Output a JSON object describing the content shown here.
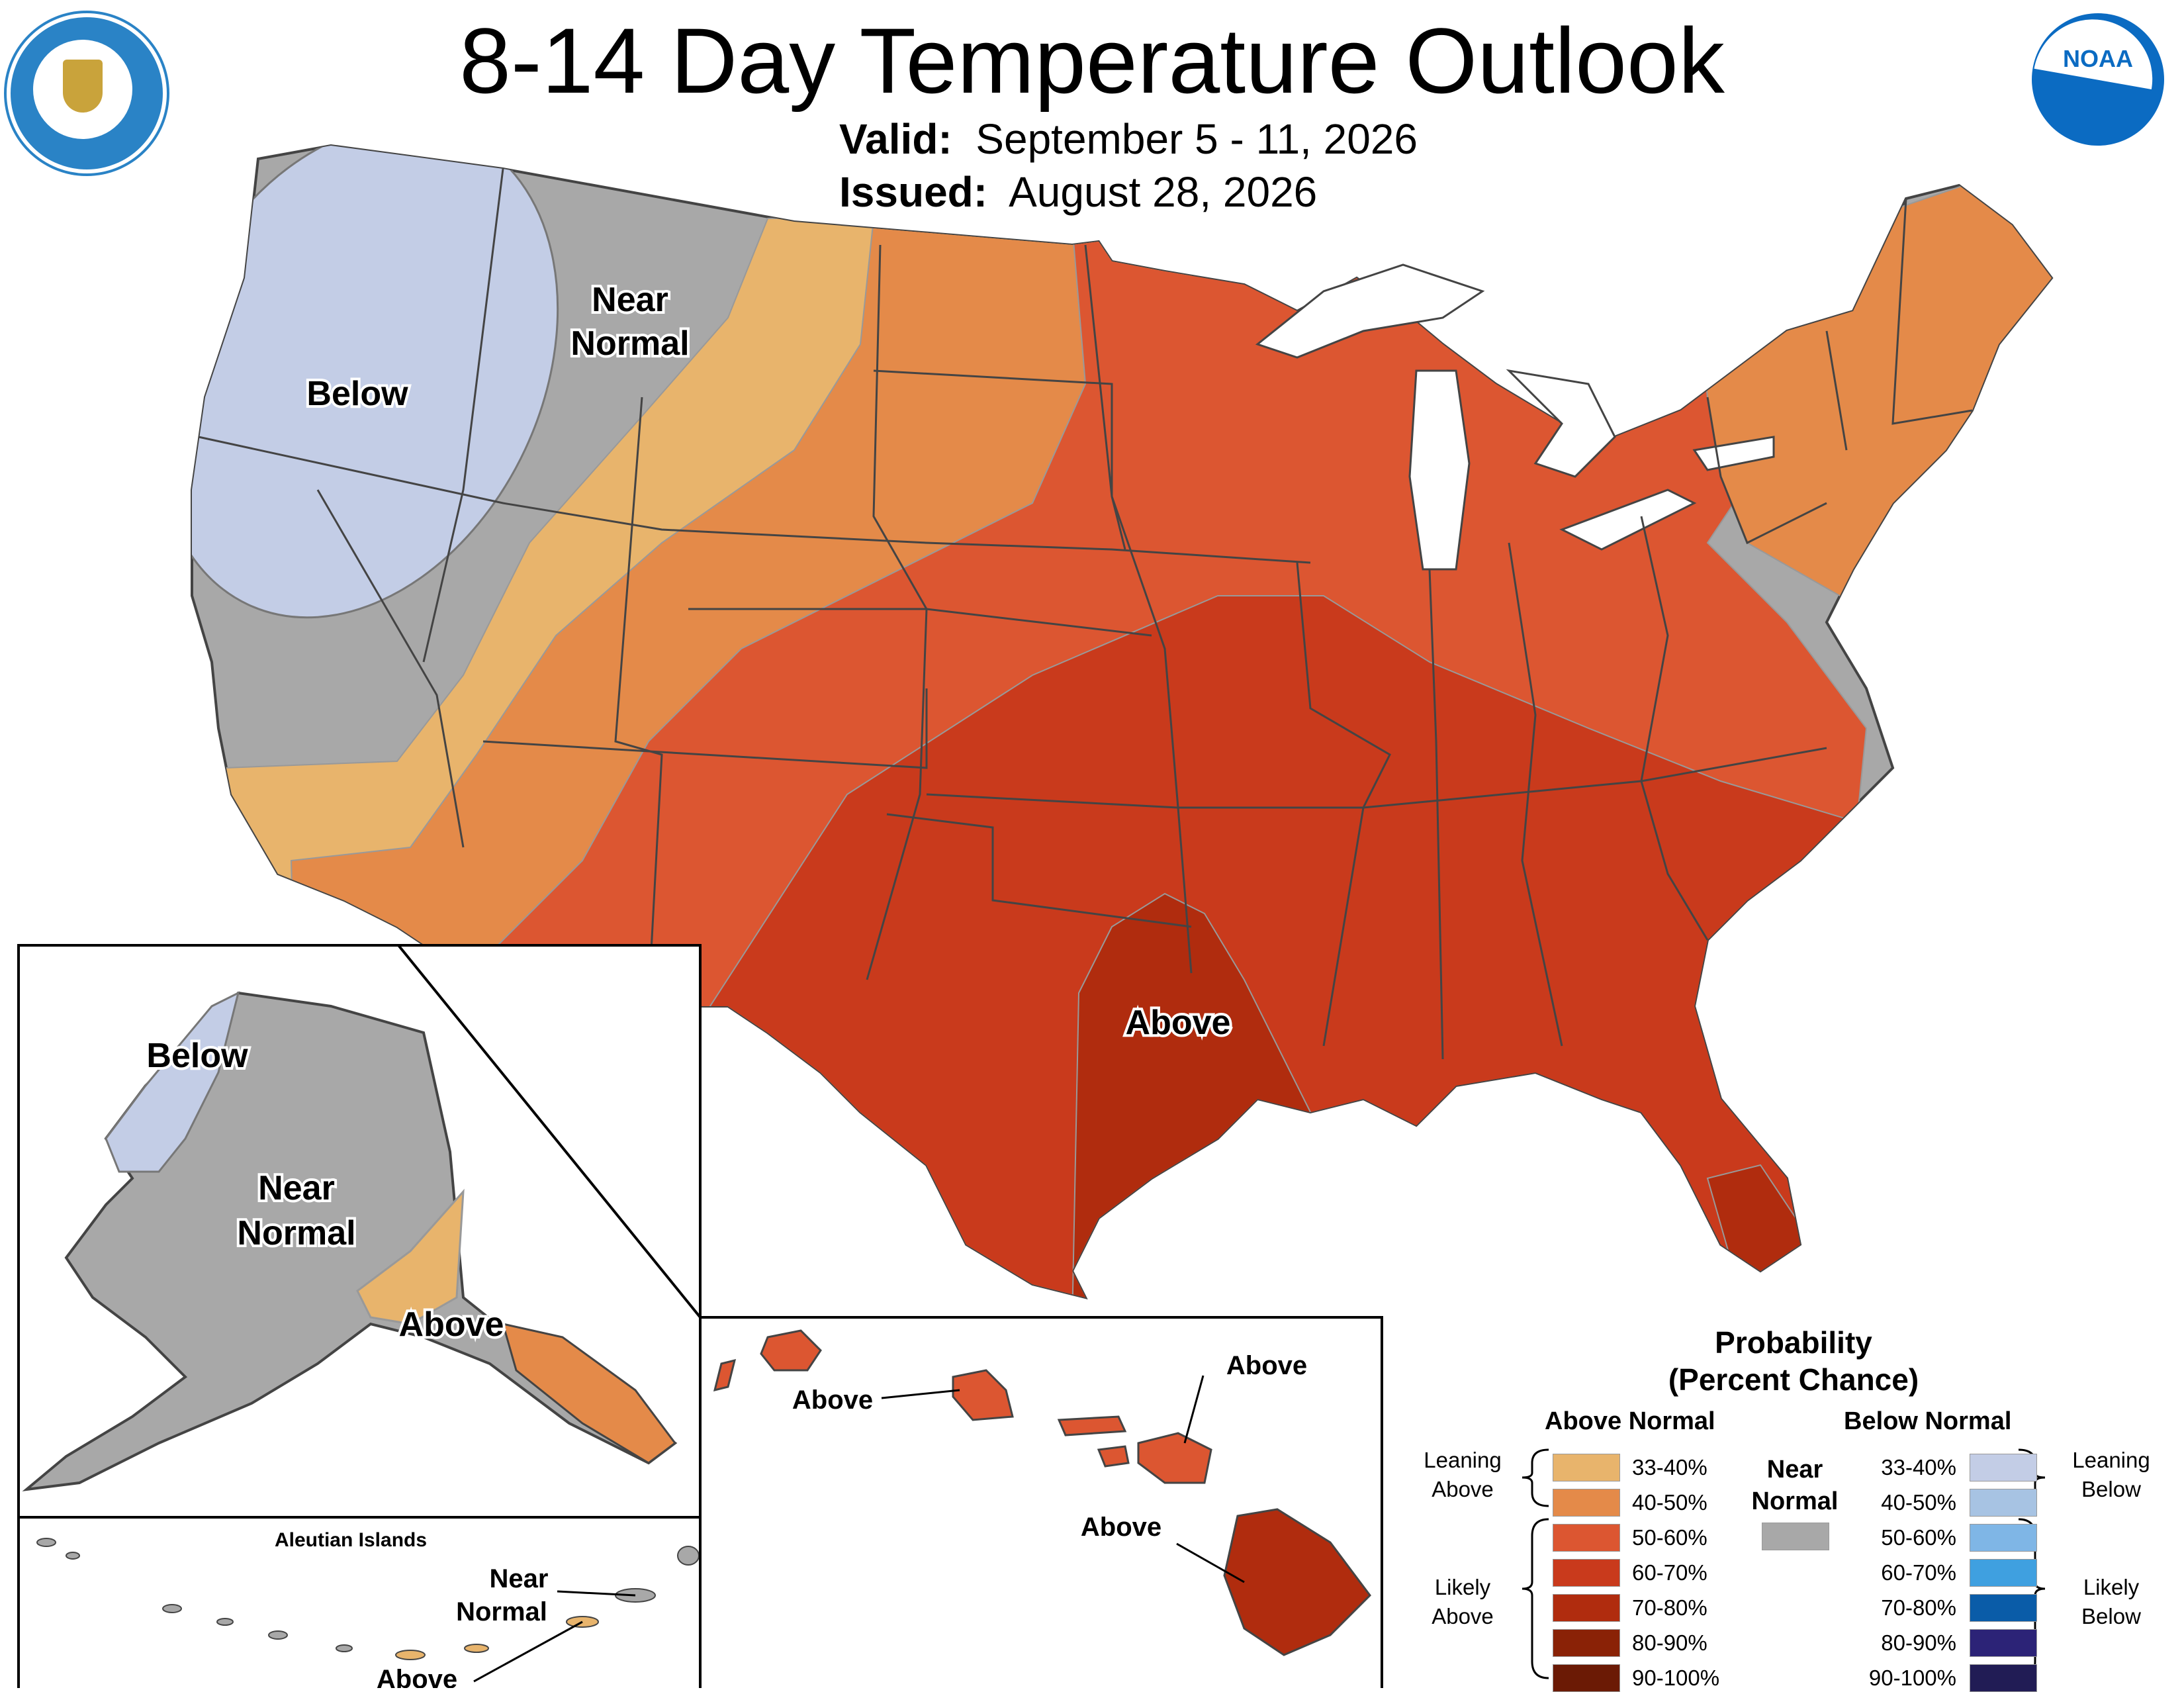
{
  "title": "8-14 Day Temperature Outlook",
  "valid": {
    "label": "Valid:",
    "value": "September 5 - 11, 2026"
  },
  "issued": {
    "label": "Issued:",
    "value": "August 28, 2026"
  },
  "logos": {
    "left": "department-of-commerce-seal",
    "right": "noaa-logo",
    "noaa_text": "NOAA"
  },
  "map_labels": {
    "conus_below": "Below",
    "conus_near_1": "Near",
    "conus_near_2": "Normal",
    "conus_above": "Above",
    "ak_below": "Below",
    "ak_near_1": "Near",
    "ak_near_2": "Normal",
    "ak_above": "Above",
    "aleutian_title": "Aleutian Islands",
    "aleutian_near_1": "Near",
    "aleutian_near_2": "Normal",
    "aleutian_above": "Above",
    "hi_above_1": "Above",
    "hi_above_2": "Above",
    "hi_above_3": "Above"
  },
  "legend": {
    "title_1": "Probability",
    "title_2": "(Percent Chance)",
    "above_header": "Above Normal",
    "below_header": "Below Normal",
    "near_1": "Near",
    "near_2": "Normal",
    "leaning_above_1": "Leaning",
    "leaning_above_2": "Above",
    "likely_above_1": "Likely",
    "likely_above_2": "Above",
    "leaning_below_1": "Leaning",
    "leaning_below_2": "Below",
    "likely_below_1": "Likely",
    "likely_below_2": "Below",
    "above": [
      {
        "range": "33-40%",
        "color": "#e8b46c"
      },
      {
        "range": "40-50%",
        "color": "#e48a49"
      },
      {
        "range": "50-60%",
        "color": "#dc5631"
      },
      {
        "range": "60-70%",
        "color": "#c93a1c"
      },
      {
        "range": "70-80%",
        "color": "#b02c0e"
      },
      {
        "range": "80-90%",
        "color": "#8a2206"
      },
      {
        "range": "90-100%",
        "color": "#6b1a05"
      }
    ],
    "below": [
      {
        "range": "33-40%",
        "color": "#c3cde6"
      },
      {
        "range": "40-50%",
        "color": "#a7c3e3"
      },
      {
        "range": "50-60%",
        "color": "#7fb6e6"
      },
      {
        "range": "60-70%",
        "color": "#3fa0e0"
      },
      {
        "range": "70-80%",
        "color": "#0a5ca8"
      },
      {
        "range": "80-90%",
        "color": "#2c2377"
      },
      {
        "range": "90-100%",
        "color": "#211c55"
      }
    ],
    "near_color": "#a8a8a8"
  }
}
